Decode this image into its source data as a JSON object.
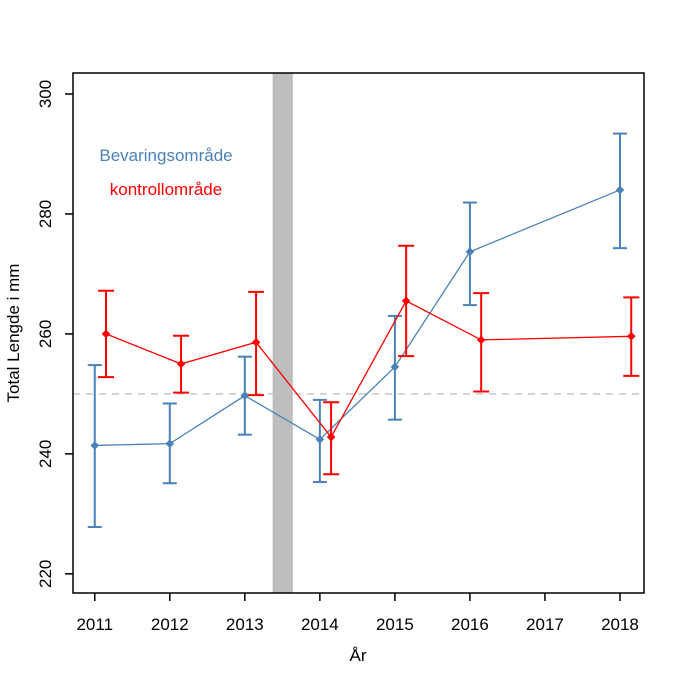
{
  "figure": {
    "background_color": "#ffffff",
    "axis_color": "#000000",
    "band_color": "#bebebe",
    "refline_color": "#c8c8c8"
  },
  "chart_data": {
    "type": "line",
    "title": "",
    "xlabel": "År",
    "ylabel": "Total Lengde i mm",
    "xlim": [
      2010.71,
      2018.32
    ],
    "ylim": [
      216.8,
      303.5
    ],
    "x_ticks": [
      2011,
      2012,
      2013,
      2014,
      2015,
      2016,
      2017,
      2018
    ],
    "y_ticks": [
      220,
      240,
      260,
      280,
      300
    ],
    "grid": false,
    "reference_line_y": 250,
    "shaded_band_x": [
      2013.37,
      2013.64
    ],
    "legend_position": "upper-left-inside",
    "legend": [
      {
        "label": "Bevaringsområde",
        "color": "#4a82b8"
      },
      {
        "label": "kontrollområde",
        "color": "#ff0000"
      }
    ],
    "series": [
      {
        "name": "Bevaringsområde",
        "color": "#4a82b8",
        "marker": "diamond",
        "x_offset": 0.0,
        "cap_half_width": 7,
        "points": [
          {
            "x": 2011,
            "y": 241.4,
            "lo": 227.8,
            "hi": 254.8
          },
          {
            "x": 2012,
            "y": 241.7,
            "lo": 235.1,
            "hi": 248.4
          },
          {
            "x": 2013,
            "y": 249.7,
            "lo": 243.2,
            "hi": 256.2
          },
          {
            "x": 2014,
            "y": 242.4,
            "lo": 235.3,
            "hi": 249.0
          },
          {
            "x": 2015,
            "y": 254.5,
            "lo": 245.7,
            "hi": 263.0
          },
          {
            "x": 2016,
            "y": 273.7,
            "lo": 264.8,
            "hi": 281.9
          },
          {
            "x": 2018,
            "y": 284.0,
            "lo": 274.3,
            "hi": 293.4
          }
        ]
      },
      {
        "name": "kontrollområde",
        "color": "#ff0000",
        "marker": "diamond",
        "x_offset": 0.15,
        "cap_half_width": 8,
        "points": [
          {
            "x": 2011,
            "y": 260.0,
            "lo": 252.8,
            "hi": 267.2
          },
          {
            "x": 2012,
            "y": 255.0,
            "lo": 250.2,
            "hi": 259.7
          },
          {
            "x": 2013,
            "y": 258.6,
            "lo": 249.8,
            "hi": 267.0
          },
          {
            "x": 2014,
            "y": 242.8,
            "lo": 236.6,
            "hi": 248.6
          },
          {
            "x": 2015,
            "y": 265.5,
            "lo": 256.3,
            "hi": 274.7
          },
          {
            "x": 2016,
            "y": 259.0,
            "lo": 250.4,
            "hi": 266.8
          },
          {
            "x": 2018,
            "y": 259.6,
            "lo": 253.0,
            "hi": 266.1
          }
        ]
      }
    ]
  }
}
